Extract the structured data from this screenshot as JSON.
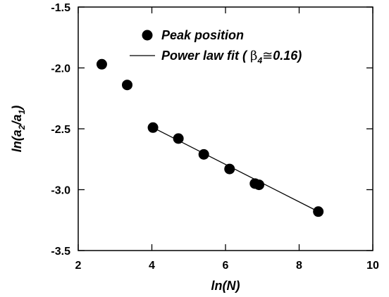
{
  "chart_data": {
    "type": "scatter",
    "xlabel": "ln(N)",
    "ylabel": "ln(a2/a1)",
    "xlim": [
      2,
      10
    ],
    "ylim": [
      -3.5,
      -1.5
    ],
    "xticks": [
      2,
      4,
      6,
      8,
      10
    ],
    "yticks": [
      -1.5,
      -2.0,
      -2.5,
      -3.0,
      -3.5
    ],
    "xtick_labels": [
      "2",
      "4",
      "6",
      "8",
      "10"
    ],
    "ytick_labels": [
      "-1.5",
      "-2.0",
      "-2.5",
      "-3.0",
      "-3.5"
    ],
    "series": [
      {
        "name": "Peak position",
        "kind": "scatter",
        "x": [
          2.64,
          3.33,
          4.03,
          4.72,
          5.41,
          6.11,
          6.8,
          6.91,
          8.52
        ],
        "y": [
          -1.97,
          -2.14,
          -2.49,
          -2.58,
          -2.71,
          -2.83,
          -2.95,
          -2.96,
          -3.18
        ]
      },
      {
        "name": "Power law fit ( β4≅0.16)",
        "kind": "line",
        "x": [
          4.03,
          8.52
        ],
        "y": [
          -2.49,
          -3.18
        ]
      }
    ],
    "legend": {
      "placement": "top-right",
      "entries": [
        {
          "label_text": "Peak position"
        },
        {
          "label_pre": "Power law fit ( ",
          "beta": "β",
          "beta_sub": "4",
          "approx": "≅",
          "value": "0.16)"
        }
      ]
    },
    "colors": {
      "marker": "#000000",
      "line": "#000000",
      "axes": "#000000"
    }
  }
}
